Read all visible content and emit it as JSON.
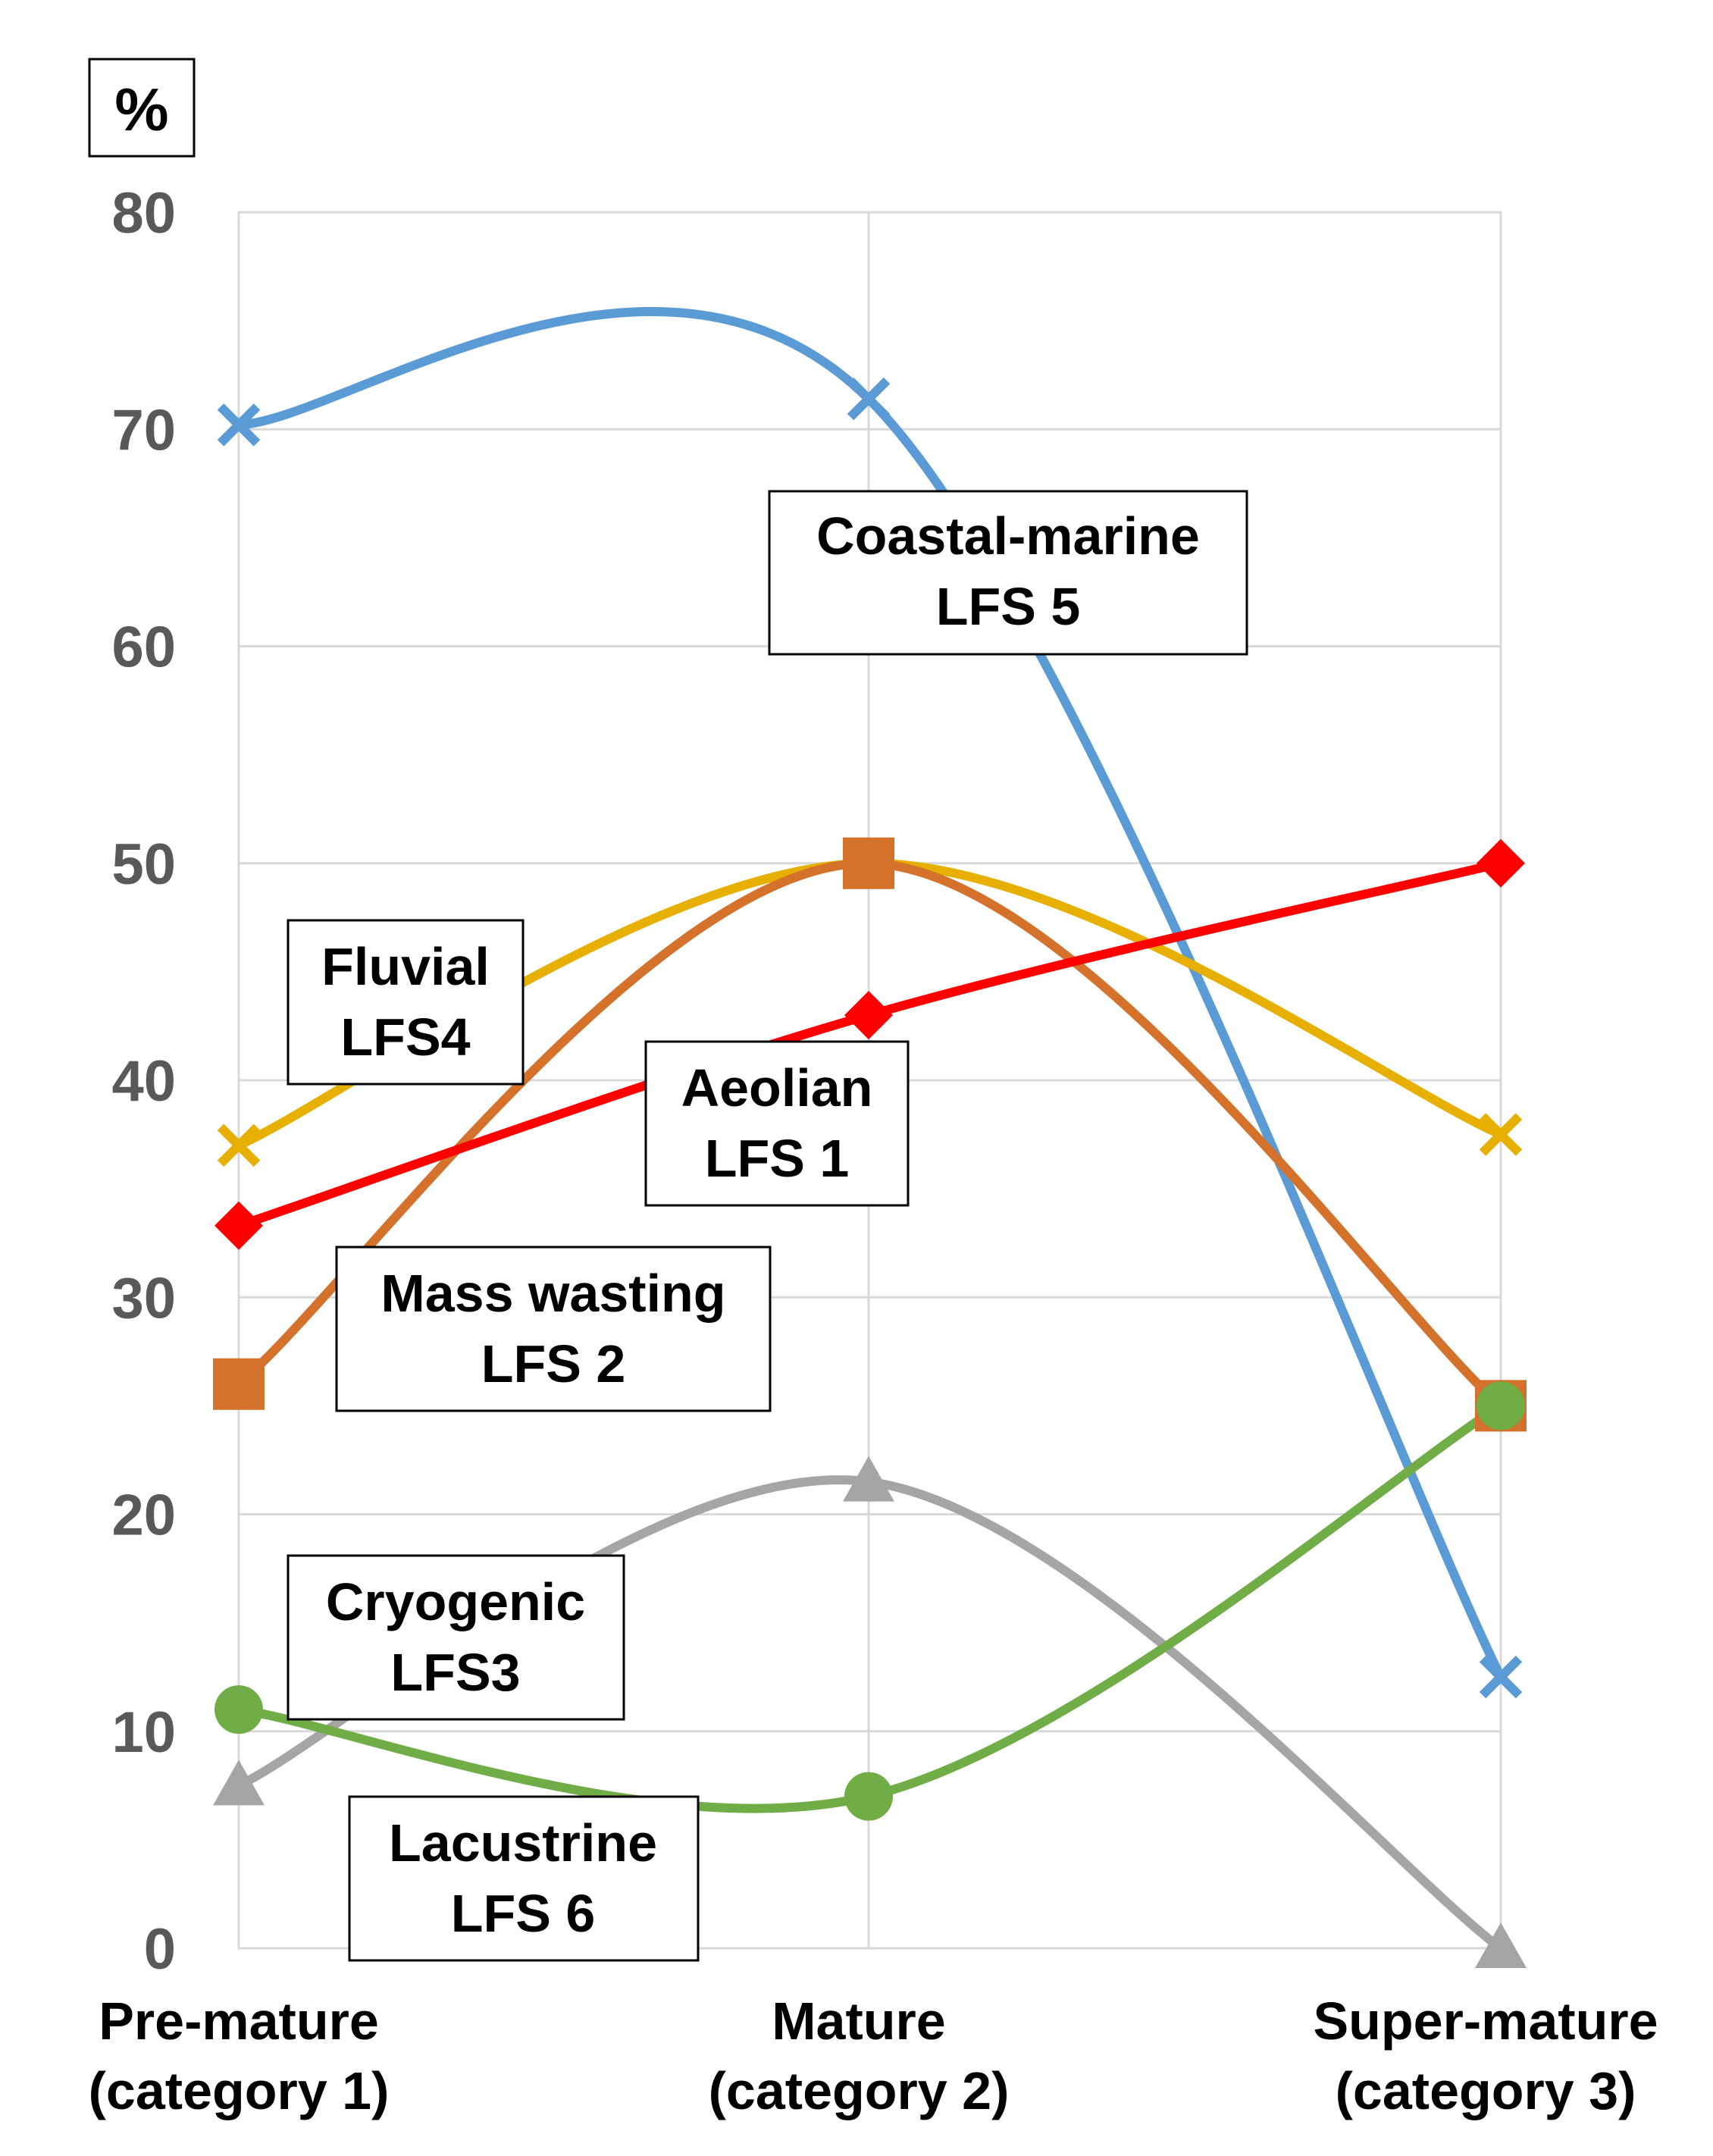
{
  "chart_data": {
    "type": "line",
    "y_unit": "%",
    "ylim": [
      0,
      80
    ],
    "yticks": [
      0,
      10,
      20,
      30,
      40,
      50,
      60,
      70,
      80
    ],
    "grid": true,
    "smoothed": true,
    "categories": [
      {
        "line1": "Pre-mature",
        "line2": "(category 1)"
      },
      {
        "line1": "Mature",
        "line2": "(category 2)"
      },
      {
        "line1": "Super-mature",
        "line2": "(category 3)"
      }
    ],
    "series": [
      {
        "id": "lfs5",
        "line1": "Coastal-marine",
        "line2": "LFS 5",
        "color": "#5B9BD5",
        "marker": "x",
        "values": [
          70.2,
          71.4,
          12.5
        ]
      },
      {
        "id": "lfs4",
        "line1": "Fluvial",
        "line2": "LFS4",
        "color": "#E7B000",
        "marker": "x",
        "values": [
          37,
          50,
          37.5
        ]
      },
      {
        "id": "lfs2",
        "line1": "Mass wasting",
        "line2": "LFS 2",
        "color": "#D4712A",
        "marker": "square",
        "values": [
          26,
          50,
          25
        ]
      },
      {
        "id": "lfs1",
        "line1": "Aeolian",
        "line2": "LFS 1",
        "color": "#FF0000",
        "marker": "diamond",
        "values": [
          33.3,
          43,
          50
        ]
      },
      {
        "id": "lfs6",
        "line1": "Lacustrine",
        "line2": "LFS 6",
        "color": "#A5A5A5",
        "marker": "triangle",
        "values": [
          7.5,
          21.5,
          0
        ]
      },
      {
        "id": "lfs3",
        "line1": "Cryogenic",
        "line2": "LFS3",
        "color": "#70AD47",
        "marker": "circle",
        "values": [
          11,
          7,
          25
        ]
      }
    ]
  }
}
